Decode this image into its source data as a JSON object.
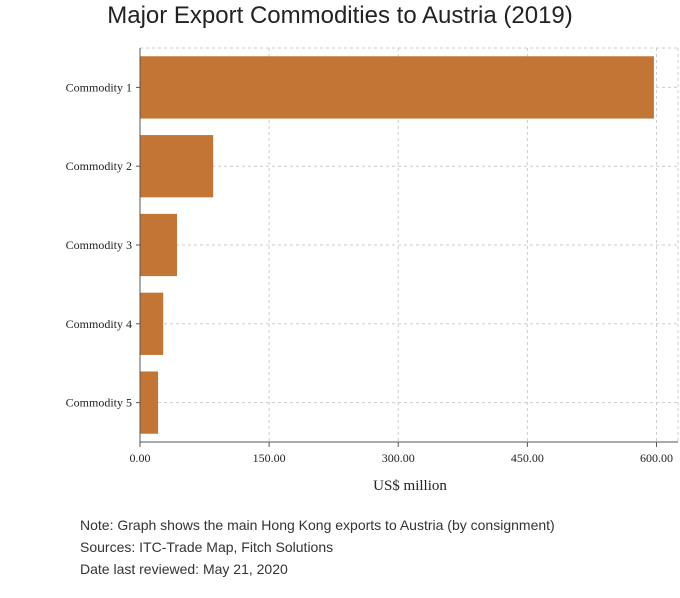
{
  "chart_data": {
    "type": "bar",
    "orientation": "horizontal",
    "title": "Major Export Commodities to Austria (2019)",
    "categories": [
      "Commodity 1",
      "Commodity 2",
      "Commodity 3",
      "Commodity 4",
      "Commodity 5"
    ],
    "values": [
      597,
      85,
      43,
      27,
      21
    ],
    "xlabel": "US$ million",
    "ylabel": "",
    "xlim": [
      0,
      625
    ],
    "xticks": [
      0,
      150,
      300,
      450,
      600
    ],
    "xtick_labels": [
      "0.00",
      "150.00",
      "300.00",
      "450.00",
      "600.00"
    ],
    "grid": true,
    "bar_color": "#C27535"
  },
  "notes": {
    "note": "Note: Graph shows the main Hong Kong exports to Austria (by consignment)",
    "sources": "Sources: ITC-Trade Map, Fitch Solutions",
    "date": "Date last reviewed: May 21, 2020"
  }
}
